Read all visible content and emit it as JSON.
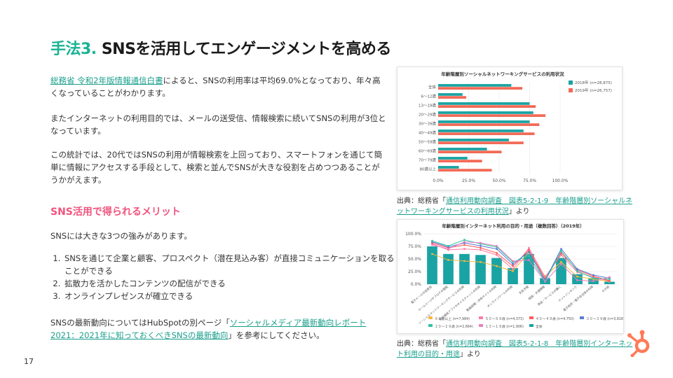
{
  "page": {
    "title_prefix": "手法3.",
    "title_main": " SNSを活用してエンゲージメントを高める",
    "page_number": "17"
  },
  "body": {
    "p1_link": "総務省 令和2年版情報通信白書",
    "p1_text": "によると、SNSの利用率は平均69.0%となっており、年々高くなっていることがわかります。",
    "p2": "またインターネットの利用目的では、メールの送受信、情報検索に続いてSNSの利用が3位となっています。",
    "p3": "この統計では、20代ではSNSの利用が情報検索を上回っており、スマートフォンを通じて簡単に情報にアクセスする手段として、検索と並んでSNSが大きな役割を占めつつあることがうかがえます。",
    "subheading": "SNS活用で得られるメリット",
    "p4": "SNSには大きな3つの強みがあります。",
    "list": [
      "SNSを通じて企業と顧客、プロスペクト（潜在見込み客）が直接コミュニケーションを取ることができる",
      "拡散力を活かしたコンテンツの配信ができる",
      "オンラインプレゼンスが確立できる"
    ],
    "p5_pre": "SNSの最新動向についてはHubSpotの別ページ「",
    "p5_link": "ソーシャルメディア最新動向レポート2021：2021年に知っておくべきSNSの最新動向",
    "p5_post": "」を参考にしてください。"
  },
  "caption1": {
    "pre": "出典：総務省「",
    "link": "通信利用動向調査　図表5-2-1-9　年齢階層別ソーシャルネットワーキングサービスの利用状況",
    "post": "」より"
  },
  "caption2": {
    "pre": "出典：総務省「",
    "link": "通信利用動向調査　図表5-2-1-8　年齢階層別インターネット利用の目的・用途",
    "post": "」より"
  },
  "colors": {
    "accent_green": "#1ab394",
    "accent_pink": "#f2547d",
    "link_teal": "#1a9e8c",
    "hubspot_orange": "#ff7a59"
  },
  "chart_data": [
    {
      "type": "bar",
      "orientation": "horizontal",
      "title": "年齢階層別ソーシャルネットワーキングサービスの利用状況",
      "categories": [
        "全体",
        "6～12歳",
        "13～19歳",
        "20～29歳",
        "30～39歳",
        "40～49歳",
        "50～59歳",
        "60～69歳",
        "70～79歳",
        "80歳以上"
      ],
      "series": [
        {
          "name": "2018年 (n=28,875)",
          "color": "#1aa3a3",
          "values": [
            60,
            20,
            75,
            78,
            75,
            70,
            58,
            40,
            24,
            17
          ]
        },
        {
          "name": "2019年 (n=26,757)",
          "color": "#f26a57",
          "values": [
            69,
            23,
            80,
            88,
            83,
            79,
            70,
            52,
            36,
            44
          ]
        }
      ],
      "xlim": [
        0,
        100
      ],
      "xticks": [
        "0.0%",
        "25.0%",
        "50.0%",
        "75.0%",
        "100.0%"
      ],
      "legend": "top-right",
      "grid": true
    },
    {
      "type": "bar",
      "title": "年齢階層別インターネット利用の目的・用途（複数回答）（2019年）",
      "categories": [
        "電子メールの送受信",
        "ホームページやブログの閲覧",
        "ソーシャルネットワーキングサービスの利用",
        "無料通話アプリやボイスチャットの利用",
        "動画投稿・共有サイトの利用",
        "オンラインゲームの利用",
        "天気予報",
        "地図・交通情報",
        "商品・サービスの購入",
        "ネットバンキング",
        "電子政府・電子自治体の利用",
        "その他"
      ],
      "bar_series": {
        "name": "全体",
        "color": "#1aa3a3",
        "values": [
          75,
          60,
          60,
          58,
          52,
          32,
          60,
          12,
          52,
          20,
          12,
          5
        ]
      },
      "line_series": [
        {
          "name": "６０歳以上 (n=7,984)",
          "color": "#f5b83d",
          "values": [
            60,
            48,
            46,
            44,
            36,
            26,
            63,
            16,
            44,
            15,
            10,
            5
          ]
        },
        {
          "name": "５０～５９歳 (n=4,373)",
          "color": "#ff7aa0",
          "values": [
            80,
            68,
            70,
            68,
            58,
            30,
            72,
            14,
            58,
            24,
            14,
            6
          ]
        },
        {
          "name": "４０～４９歳 (n=4,750)",
          "color": "#ff5a5a",
          "values": [
            82,
            72,
            78,
            72,
            62,
            36,
            68,
            10,
            62,
            28,
            16,
            7
          ]
        },
        {
          "name": "３０～３９歳 (n=3,818)",
          "color": "#5b7bd5",
          "values": [
            84,
            74,
            82,
            76,
            70,
            40,
            64,
            8,
            70,
            30,
            18,
            12
          ]
        },
        {
          "name": "２０～２９歳 (n=2,664)",
          "color": "#2ec4a8",
          "values": [
            86,
            76,
            88,
            80,
            74,
            44,
            56,
            6,
            66,
            26,
            12,
            10
          ]
        },
        {
          "name": "１３～１９歳 (n=1,906)",
          "color": "#e87fbf",
          "values": [
            78,
            70,
            84,
            82,
            76,
            46,
            48,
            5,
            40,
            8,
            6,
            14
          ]
        }
      ],
      "ylim": [
        0,
        100
      ],
      "yticks": [
        "0.0%",
        "25.0%",
        "50.0%",
        "75.0%",
        "100.0%"
      ],
      "legend": "bottom",
      "grid": true
    }
  ]
}
